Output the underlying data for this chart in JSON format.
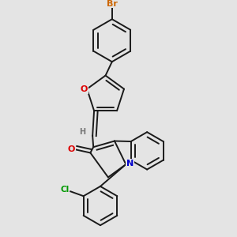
{
  "background_color": "#e4e4e4",
  "bond_color": "#1a1a1a",
  "atom_colors": {
    "Br": "#cc6600",
    "O": "#dd0000",
    "N": "#0000cc",
    "Cl": "#009900",
    "H": "#777777",
    "C": "#1a1a1a"
  },
  "figsize": [
    3.0,
    3.0
  ],
  "dpi": 100,
  "lw": 1.4
}
